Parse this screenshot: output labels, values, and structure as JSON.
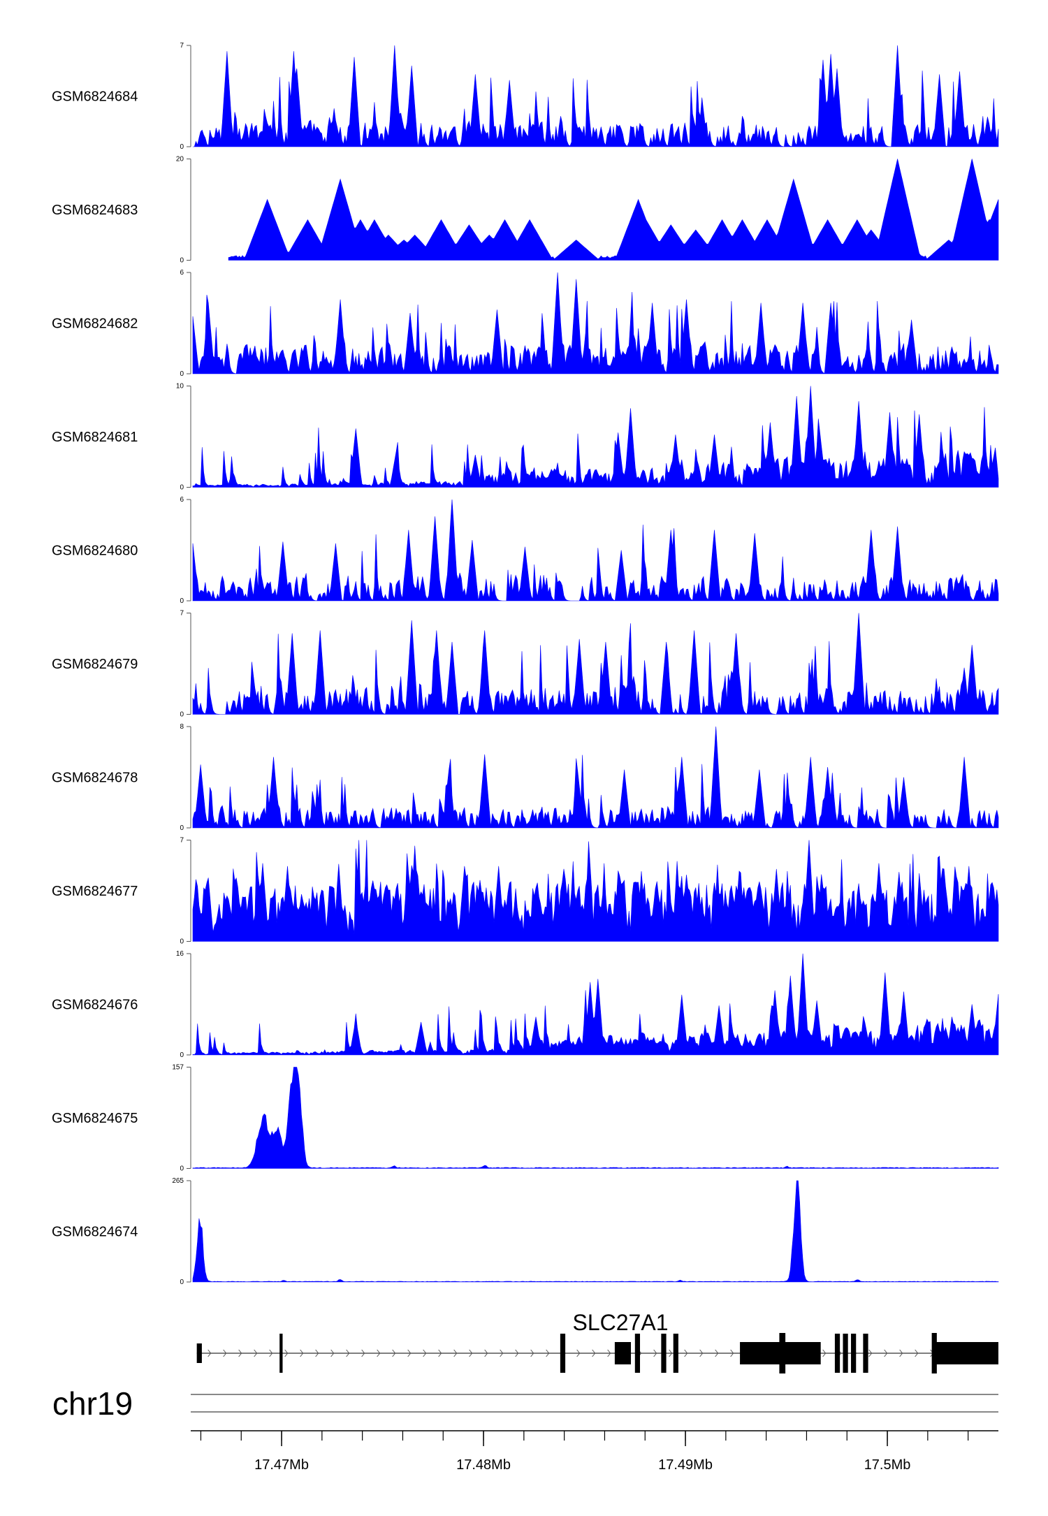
{
  "chart_data": {
    "type": "area",
    "genome_region": {
      "chromosome": "chr19",
      "start": 17.4655,
      "end": 17.5055,
      "unit": "Mb",
      "tick_step": 0.002,
      "major_ticks": [
        {
          "value": 17.47,
          "label": "17.47Mb"
        },
        {
          "value": 17.48,
          "label": "17.48Mb"
        },
        {
          "value": 17.49,
          "label": "17.49Mb"
        },
        {
          "value": 17.5,
          "label": "17.5Mb"
        }
      ]
    },
    "fill_color": "#0000ff",
    "tracks": [
      {
        "name": "GSM6824684",
        "ymin": 0,
        "ymax": 7,
        "ymin_label": "0",
        "ymax_label": "7",
        "profile": "noise",
        "seed": 11,
        "base": 0.08,
        "noise": 0.55,
        "gap": 0.35,
        "peaks": [
          [
            17.4672,
            6.6
          ],
          [
            17.4705,
            6.6
          ],
          [
            17.4707,
            5.4
          ],
          [
            17.4735,
            6.2
          ],
          [
            17.4755,
            7.0
          ],
          [
            17.4764,
            5.6
          ],
          [
            17.4795,
            5.0
          ],
          [
            17.4812,
            4.6
          ],
          [
            17.4968,
            6.0
          ],
          [
            17.4972,
            6.4
          ],
          [
            17.4975,
            5.4
          ],
          [
            17.5005,
            7.0
          ],
          [
            17.5026,
            5.0
          ],
          [
            17.5036,
            5.2
          ]
        ]
      },
      {
        "name": "GSM6824683",
        "ymin": 0,
        "ymax": 20,
        "ymin_label": "0",
        "ymax_label": "20",
        "profile": "sparse",
        "seed": 23,
        "start": 17.4672,
        "peaks": [
          [
            17.4692,
            12
          ],
          [
            17.4694,
            5
          ],
          [
            17.4712,
            8
          ],
          [
            17.4728,
            16
          ],
          [
            17.4738,
            8
          ],
          [
            17.4745,
            8
          ],
          [
            17.4752,
            5
          ],
          [
            17.476,
            4
          ],
          [
            17.4765,
            5
          ],
          [
            17.4778,
            8
          ],
          [
            17.4792,
            7
          ],
          [
            17.4802,
            5
          ],
          [
            17.481,
            8
          ],
          [
            17.4822,
            8
          ],
          [
            17.4845,
            4
          ],
          [
            17.4876,
            12
          ],
          [
            17.488,
            8
          ],
          [
            17.4892,
            7
          ],
          [
            17.4905,
            6
          ],
          [
            17.4918,
            8
          ],
          [
            17.4928,
            8
          ],
          [
            17.494,
            8
          ],
          [
            17.4953,
            16
          ],
          [
            17.497,
            8
          ],
          [
            17.4985,
            8
          ],
          [
            17.4992,
            6
          ],
          [
            17.5005,
            20
          ],
          [
            17.503,
            4
          ],
          [
            17.5042,
            20
          ],
          [
            17.505,
            8
          ],
          [
            17.5055,
            12
          ]
        ]
      },
      {
        "name": "GSM6824682",
        "ymin": 0,
        "ymax": 6,
        "ymin_label": "0",
        "ymax_label": "6",
        "profile": "noise",
        "seed": 37,
        "base": 0.1,
        "noise": 0.5,
        "gap": 0.3,
        "peaks": [
          [
            17.4655,
            3.4
          ],
          [
            17.4663,
            4.2
          ],
          [
            17.4728,
            4.4
          ],
          [
            17.4763,
            3.6
          ],
          [
            17.4806,
            3.8
          ],
          [
            17.4836,
            6.0
          ],
          [
            17.4845,
            5.6
          ],
          [
            17.4883,
            4.2
          ],
          [
            17.49,
            4.4
          ],
          [
            17.4937,
            4.2
          ],
          [
            17.4958,
            4.2
          ],
          [
            17.4972,
            4.2
          ],
          [
            17.5012,
            3.2
          ]
        ]
      },
      {
        "name": "GSM6824681",
        "ymin": 0,
        "ymax": 10,
        "ymin_label": "0",
        "ymax_label": "10",
        "profile": "ramp",
        "seed": 41,
        "ramp_start": 0.2,
        "ramp_mid": 17.48,
        "ramp_end": 3.2,
        "noise": 0.5,
        "gap": 0.12,
        "peaks": [
          [
            17.4736,
            5.8
          ],
          [
            17.4756,
            3.5
          ],
          [
            17.4795,
            3.2
          ],
          [
            17.4866,
            5.4
          ],
          [
            17.4872,
            7.8
          ],
          [
            17.4895,
            5.2
          ],
          [
            17.4914,
            5.2
          ],
          [
            17.4942,
            6.4
          ],
          [
            17.4955,
            9.0
          ],
          [
            17.4962,
            10.0
          ],
          [
            17.4966,
            5.4
          ],
          [
            17.4986,
            8.5
          ],
          [
            17.5001,
            7.4
          ],
          [
            17.5016,
            7.2
          ]
        ]
      },
      {
        "name": "GSM6824680",
        "ymin": 0,
        "ymax": 6,
        "ymin_label": "0",
        "ymax_label": "6",
        "profile": "noise",
        "seed": 53,
        "base": 0.06,
        "noise": 0.55,
        "gap": 0.45,
        "peaks": [
          [
            17.4655,
            3.4
          ],
          [
            17.47,
            3.5
          ],
          [
            17.4726,
            3.4
          ],
          [
            17.4762,
            4.2
          ],
          [
            17.4775,
            5.0
          ],
          [
            17.4784,
            6.2
          ],
          [
            17.4794,
            3.6
          ],
          [
            17.482,
            3.2
          ],
          [
            17.4868,
            3.0
          ],
          [
            17.4892,
            4.2
          ],
          [
            17.4914,
            4.2
          ],
          [
            17.4934,
            4.0
          ],
          [
            17.4992,
            4.2
          ],
          [
            17.5005,
            4.4
          ]
        ]
      },
      {
        "name": "GSM6824679",
        "ymin": 0,
        "ymax": 7,
        "ymin_label": "0",
        "ymax_label": "7",
        "profile": "noise",
        "seed": 67,
        "base": 0.1,
        "noise": 0.55,
        "gap": 0.35,
        "peaks": [
          [
            17.4704,
            5.6
          ],
          [
            17.4718,
            5.8
          ],
          [
            17.4764,
            6.5
          ],
          [
            17.4776,
            5.8
          ],
          [
            17.4784,
            5.0
          ],
          [
            17.48,
            5.8
          ],
          [
            17.4847,
            5.2
          ],
          [
            17.486,
            5.0
          ],
          [
            17.489,
            5.0
          ],
          [
            17.4904,
            5.8
          ],
          [
            17.4925,
            5.6
          ],
          [
            17.4986,
            7.0
          ],
          [
            17.5042,
            4.8
          ]
        ]
      },
      {
        "name": "GSM6824678",
        "ymin": 0,
        "ymax": 8,
        "ymin_label": "0",
        "ymax_label": "8",
        "profile": "noise",
        "seed": 71,
        "base": 0.06,
        "noise": 0.55,
        "gap": 0.4,
        "peaks": [
          [
            17.4659,
            5.0
          ],
          [
            17.4695,
            5.6
          ],
          [
            17.4782,
            4.6
          ],
          [
            17.48,
            5.8
          ],
          [
            17.4846,
            4.4
          ],
          [
            17.4869,
            4.6
          ],
          [
            17.4898,
            5.6
          ],
          [
            17.4915,
            8.0
          ],
          [
            17.4936,
            4.6
          ],
          [
            17.4962,
            5.6
          ],
          [
            17.497,
            4.8
          ],
          [
            17.5008,
            4.0
          ],
          [
            17.5038,
            5.6
          ]
        ]
      },
      {
        "name": "GSM6824677",
        "ymin": 0,
        "ymax": 7,
        "ymin_label": "0",
        "ymax_label": "7",
        "profile": "noise",
        "seed": 83,
        "base": 0.35,
        "noise": 0.55,
        "gap": 0.08,
        "peaks": [
          [
            17.469,
            5.4
          ],
          [
            17.4702,
            5.2
          ],
          [
            17.479,
            5.2
          ],
          [
            17.4807,
            5.2
          ],
          [
            17.49,
            4.6
          ],
          [
            17.4945,
            5.0
          ],
          [
            17.4961,
            7.0
          ],
          [
            17.4996,
            5.4
          ],
          [
            17.5006,
            4.8
          ],
          [
            17.5028,
            5.0
          ],
          [
            17.504,
            5.2
          ]
        ]
      },
      {
        "name": "GSM6824676",
        "ymin": 0,
        "ymax": 16,
        "ymin_label": "0",
        "ymax_label": "16",
        "profile": "ramp",
        "seed": 97,
        "ramp_start": 0.3,
        "ramp_mid": 17.482,
        "ramp_end": 5.0,
        "noise": 0.45,
        "gap": 0.06,
        "peaks": [
          [
            17.4736,
            5.6
          ],
          [
            17.4768,
            5.2
          ],
          [
            17.4825,
            6.0
          ],
          [
            17.4852,
            11.5
          ],
          [
            17.4856,
            12.0
          ],
          [
            17.4898,
            9.5
          ],
          [
            17.4916,
            7.8
          ],
          [
            17.4944,
            10.2
          ],
          [
            17.4952,
            12.5
          ],
          [
            17.4958,
            16.0
          ],
          [
            17.4965,
            8.6
          ],
          [
            17.4999,
            13.0
          ],
          [
            17.5008,
            10.0
          ],
          [
            17.5042,
            8.0
          ],
          [
            17.5055,
            9.6
          ]
        ]
      },
      {
        "name": "GSM6824675",
        "ymin": 0,
        "ymax": 157,
        "ymin_label": "0",
        "ymax_label": "157",
        "profile": "peak",
        "seed": 101,
        "base": 1.2,
        "bumps": [
          [
            17.469,
            0.00028,
            82
          ],
          [
            17.4697,
            0.00022,
            58
          ],
          [
            17.4705,
            0.00022,
            150
          ],
          [
            17.4708,
            0.00016,
            70
          ]
        ],
        "small": [
          [
            17.4755,
            3
          ],
          [
            17.48,
            4
          ],
          [
            17.495,
            2
          ]
        ]
      },
      {
        "name": "GSM6824674",
        "ymin": 0,
        "ymax": 265,
        "ymin_label": "0",
        "ymax_label": "265",
        "profile": "peak",
        "seed": 113,
        "base": 1.4,
        "bumps": [
          [
            17.46585,
            0.00014,
            175
          ],
          [
            17.4955,
            0.00016,
            262
          ]
        ],
        "small": [
          [
            17.47,
            3
          ],
          [
            17.4728,
            6
          ],
          [
            17.4897,
            4
          ],
          [
            17.4985,
            5
          ]
        ]
      }
    ],
    "gene": {
      "symbol": "SLC27A1",
      "strand": "+",
      "start": 17.4658,
      "end": 17.5055,
      "exons": [
        {
          "start": 17.4658,
          "end": 17.46605,
          "type": "utr"
        },
        {
          "start": 17.4699,
          "end": 17.47005,
          "type": "cds"
        },
        {
          "start": 17.4838,
          "end": 17.48405,
          "type": "cds"
        },
        {
          "start": 17.4865,
          "end": 17.4873,
          "type": "cds"
        },
        {
          "start": 17.4875,
          "end": 17.48775,
          "type": "cds"
        },
        {
          "start": 17.4888,
          "end": 17.48905,
          "type": "cds"
        },
        {
          "start": 17.4894,
          "end": 17.48965,
          "type": "cds"
        },
        {
          "start": 17.4927,
          "end": 17.4967,
          "type": "cds"
        },
        {
          "start": 17.49465,
          "end": 17.49495,
          "type": "cds_tall"
        },
        {
          "start": 17.4974,
          "end": 17.49765,
          "type": "cds"
        },
        {
          "start": 17.4978,
          "end": 17.49805,
          "type": "cds"
        },
        {
          "start": 17.4982,
          "end": 17.49845,
          "type": "cds"
        },
        {
          "start": 17.4988,
          "end": 17.49905,
          "type": "cds"
        },
        {
          "start": 17.5022,
          "end": 17.50245,
          "type": "cds_tall"
        },
        {
          "start": 17.5024,
          "end": 17.5055,
          "type": "cds"
        }
      ]
    }
  }
}
